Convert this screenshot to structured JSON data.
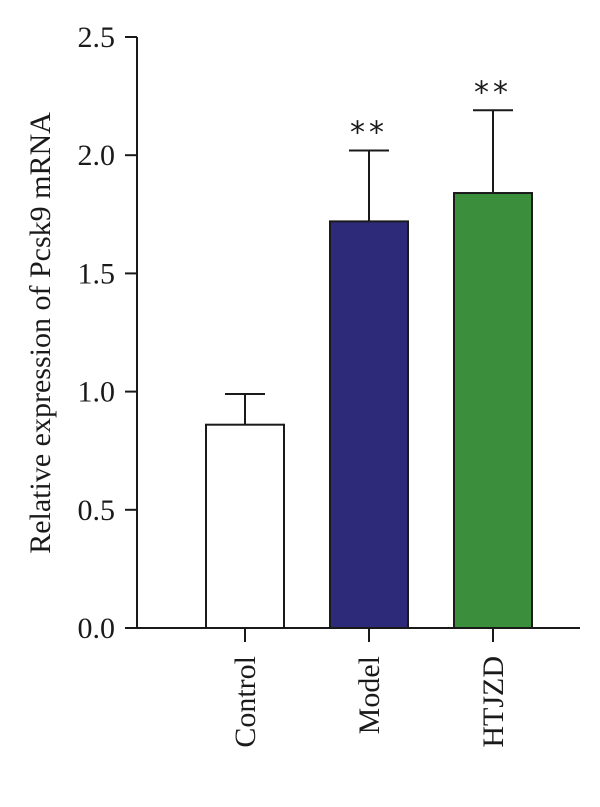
{
  "chart_data": {
    "type": "bar",
    "title": "",
    "xlabel": "",
    "ylabel": "Relative expression of Pcsk9 mRNA",
    "ylim": [
      0,
      2.5
    ],
    "yticks": [
      "0.0",
      "0.5",
      "1.0",
      "1.5",
      "2.0",
      "2.5"
    ],
    "categories": [
      "Control",
      "Model",
      "HTJZD"
    ],
    "values": [
      0.86,
      1.72,
      1.84
    ],
    "errors": [
      0.13,
      0.3,
      0.35
    ],
    "significance": [
      "",
      "**",
      "**"
    ],
    "colors": [
      "#ffffff",
      "#2e2a7a",
      "#3b8e3b"
    ],
    "grid": false,
    "legend": "none"
  }
}
